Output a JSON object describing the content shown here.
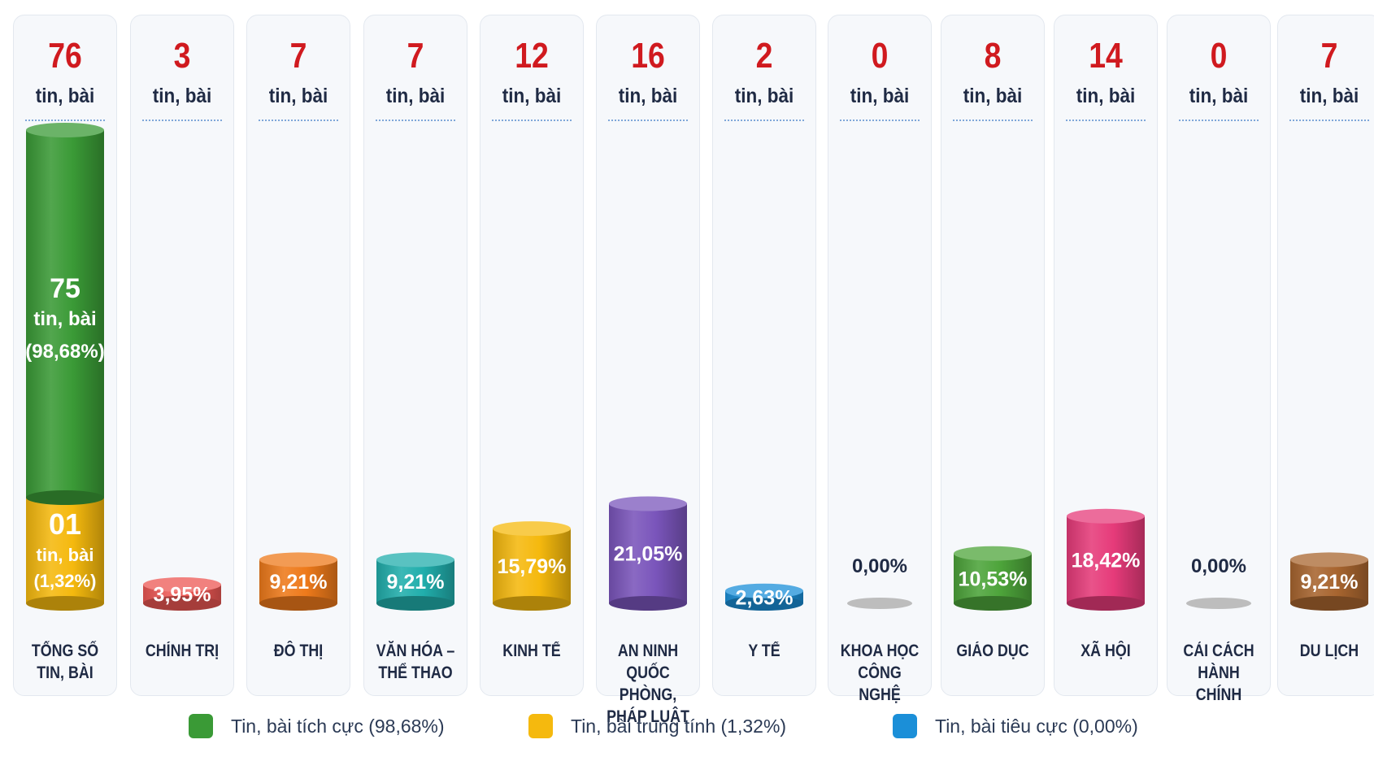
{
  "chart_data": {
    "type": "bar",
    "categories": [
      [
        "TỔNG SỐ",
        "TIN, BÀI"
      ],
      [
        "CHÍNH TRỊ"
      ],
      [
        "ĐÔ THỊ"
      ],
      [
        "VĂN HÓA –",
        "THỂ THAO"
      ],
      [
        "KINH TẾ"
      ],
      [
        "AN NINH",
        "QUỐC PHÒNG,",
        "PHÁP LUẬT"
      ],
      [
        "Y TẾ"
      ],
      [
        "KHOA HỌC",
        "CÔNG NGHỆ"
      ],
      [
        "GIÁO DỤC"
      ],
      [
        "XÃ HỘI"
      ],
      [
        "CẢI CÁCH",
        "HÀNH CHÍNH"
      ],
      [
        "DU LỊCH"
      ]
    ],
    "counts": [
      "76",
      "3",
      "7",
      "7",
      "12",
      "16",
      "2",
      "0",
      "8",
      "14",
      "0",
      "7"
    ],
    "count_unit": "tin, bài",
    "values": [
      100,
      3.95,
      9.21,
      9.21,
      15.79,
      21.05,
      2.63,
      0.0,
      10.53,
      18.42,
      0.0,
      9.21
    ],
    "value_labels": [
      "",
      "3,95%",
      "9,21%",
      "9,21%",
      "15,79%",
      "21,05%",
      "2,63%",
      "0,00%",
      "10,53%",
      "18,42%",
      "0,00%",
      "9,21%"
    ],
    "colors": [
      "#3a9a36",
      "#ec5753",
      "#ee7a1b",
      "#21aeac",
      "#f5b90e",
      "#7a55bb",
      "#1b8fd8",
      "#bdbdbd",
      "#4da43a",
      "#e63b7a",
      "#bdbdbd",
      "#a8652f"
    ],
    "total_breakdown": {
      "positive": {
        "count": "75",
        "unit": "tin, bài",
        "percent_label": "(98,68%)",
        "value": 98.68,
        "color": "#3a9a36"
      },
      "neutral": {
        "count": "01",
        "unit": "tin, bài",
        "percent_label": "(1,32%)",
        "value": 1.32,
        "color": "#f5b90e"
      }
    },
    "legend": [
      {
        "label": "Tin, bài tích cực (98,68%)",
        "color": "#3a9a36"
      },
      {
        "label": "Tin, bài trung tính (1,32%)",
        "color": "#f5b90e"
      },
      {
        "label": "Tin, bài tiêu cực (0,00%)",
        "color": "#1b8fd8"
      }
    ],
    "legend_position": "bottom",
    "grid": false
  }
}
